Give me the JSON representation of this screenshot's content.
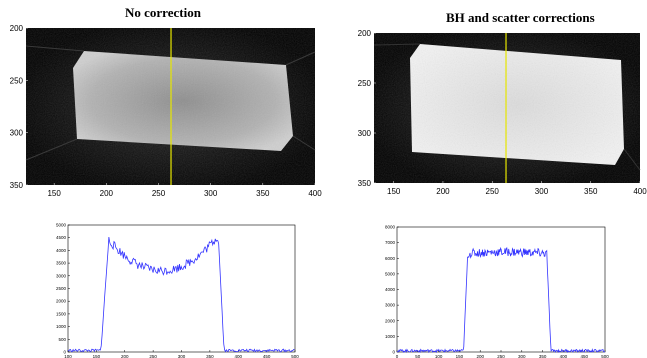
{
  "chart_data": [
    {
      "type": "heatmap",
      "title": "No correction",
      "xticks": [
        "150",
        "200",
        "250",
        "300",
        "350",
        "400"
      ],
      "yticks": [
        "200",
        "250",
        "300",
        "350"
      ],
      "xlim": [
        123,
        400
      ],
      "ylim": [
        200,
        350
      ],
      "profile_line_x": 262,
      "colormap": "gray",
      "colors": {
        "profile_line": "#e6e600"
      }
    },
    {
      "type": "heatmap",
      "title": "BH and scatter corrections",
      "xticks": [
        "150",
        "200",
        "250",
        "300",
        "350",
        "400"
      ],
      "yticks": [
        "200",
        "250",
        "300",
        "350"
      ],
      "xlim": [
        130,
        400
      ],
      "ylim": [
        200,
        350
      ],
      "profile_line_x": 264,
      "colormap": "gray",
      "colors": {
        "profile_line": "#e6e600"
      }
    },
    {
      "type": "line",
      "title": "",
      "xticks": [
        "100",
        "150",
        "200",
        "250",
        "300",
        "350",
        "400",
        "450",
        "500"
      ],
      "yticks": [
        "0",
        "500",
        "1000",
        "1500",
        "2000",
        "2500",
        "3000",
        "3500",
        "4000",
        "4500",
        "5000"
      ],
      "xlim": [
        100,
        500
      ],
      "ylim": [
        0,
        5000
      ],
      "colors": {
        "line": "#3333ff"
      },
      "profile": {
        "baseline": 60,
        "rise_start": 158,
        "rise_end": 172,
        "fall_start": 365,
        "fall_end": 375,
        "edge_value": 4500,
        "center_value": 3200,
        "center": 265
      }
    },
    {
      "type": "line",
      "title": "",
      "xticks": [
        "0",
        "50",
        "100",
        "150",
        "200",
        "250",
        "300",
        "350",
        "400",
        "450",
        "500"
      ],
      "yticks": [
        "0",
        "1000",
        "2000",
        "3000",
        "4000",
        "5000",
        "6000",
        "7000",
        "8000"
      ],
      "xlim": [
        0,
        500
      ],
      "ylim": [
        0,
        8000
      ],
      "colors": {
        "line": "#3333ff"
      },
      "profile": {
        "baseline": 80,
        "rise_start": 160,
        "rise_end": 170,
        "fall_start": 360,
        "fall_end": 370,
        "edge_value": 6300,
        "center_value": 6400,
        "center": 265
      }
    }
  ]
}
